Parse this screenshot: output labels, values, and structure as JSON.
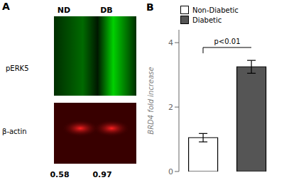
{
  "chart_data": {
    "type": "bar",
    "categories": [
      null,
      null
    ],
    "series": [
      {
        "name": "Non-Diabetic",
        "color": "#ffffff",
        "values": [
          1.05,
          null
        ],
        "errors": [
          0.13,
          null
        ]
      },
      {
        "name": "Diabetic",
        "color": "#555555",
        "values": [
          null,
          3.25
        ],
        "errors": [
          null,
          0.2
        ]
      }
    ],
    "ylabel": "BRD4 fold increase",
    "ylim": [
      0,
      4.4
    ],
    "yticks": [
      0,
      2,
      4
    ],
    "tick_labels": "y",
    "legend": "upper left",
    "annotations": [
      {
        "text": "A"
      },
      {
        "text": "ND"
      },
      {
        "text": "DB"
      },
      {
        "text": "pERK5"
      },
      {
        "text": "β-actin"
      },
      {
        "text": "0.58"
      },
      {
        "text": "0.97"
      },
      {
        "text": "B"
      },
      {
        "text": "p<0.01",
        "y": 3.85
      }
    ]
  }
}
